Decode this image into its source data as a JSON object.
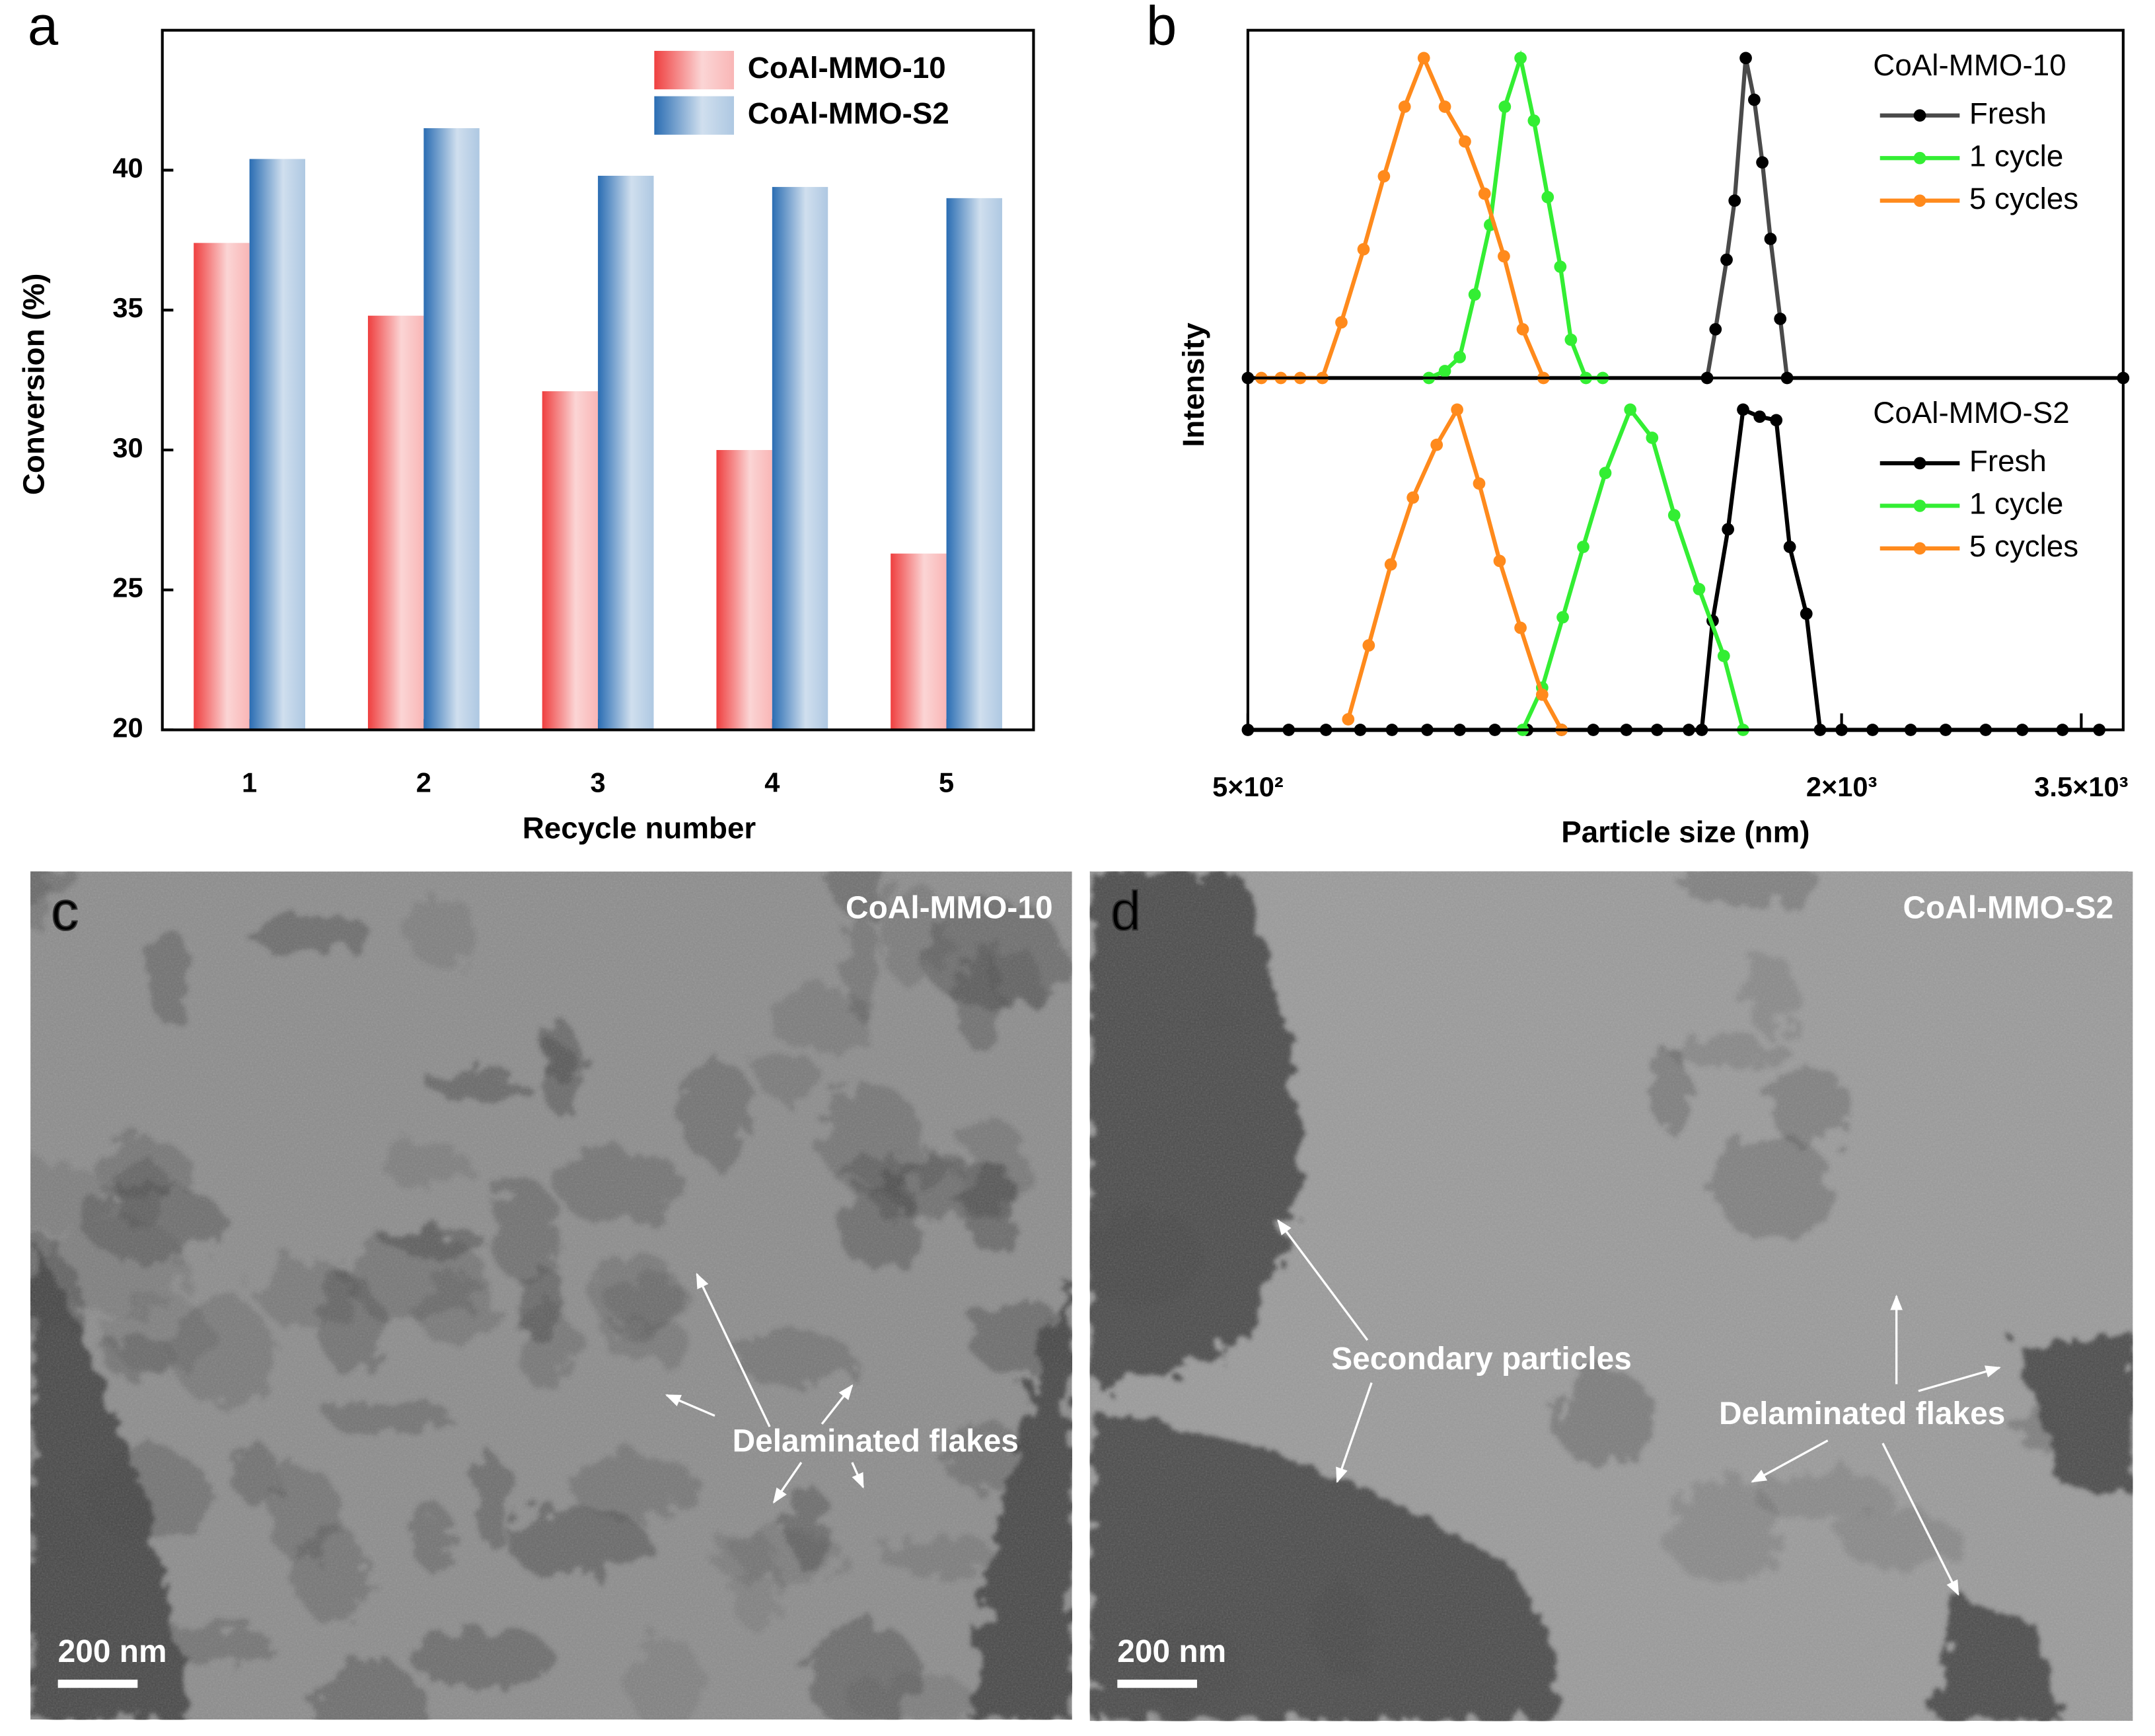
{
  "chart_data": [
    {
      "type": "bar",
      "panel_label": "a",
      "xlabel": "Recycle number",
      "ylabel": "Conversion (%)",
      "categories": [
        "1",
        "2",
        "3",
        "4",
        "5"
      ],
      "series": [
        {
          "name": "CoAl-MMO-10",
          "color": "#ef3f3f",
          "values": [
            37.4,
            34.8,
            32.1,
            30.0,
            26.3
          ]
        },
        {
          "name": "CoAl-MMO-S2",
          "color": "#2a6db3",
          "values": [
            40.4,
            41.5,
            39.8,
            39.4,
            39.0
          ]
        }
      ],
      "ylim": [
        20,
        45
      ],
      "yticks": [
        20,
        25,
        30,
        35,
        40
      ],
      "legend": "top-right"
    },
    {
      "type": "line",
      "panel_label": "b",
      "ylabel": "Intensity",
      "legend_title": "CoAl-MMO-10",
      "log_x": true,
      "xlim": [
        500,
        3860
      ],
      "ylim": [
        0,
        100
      ],
      "legend": "top-right",
      "series": [
        {
          "name": "Fresh",
          "color": "#4a4a4a",
          "marker_color": "#000000",
          "x": [
            500,
            1461,
            1490,
            1529,
            1558,
            1599,
            1631,
            1662,
            1694,
            1733,
            1761,
            3860
          ],
          "values": [
            0,
            0,
            14,
            34,
            51,
            92,
            80,
            62,
            40,
            17,
            0,
            0
          ]
        },
        {
          "name": "1 cycle",
          "color": "#33ee33",
          "marker_color": "#33ee33",
          "x": [
            763,
            792,
            820,
            849,
            880,
            911,
            945,
            975,
            1007,
            1037,
            1063,
            1101,
            1145
          ],
          "values": [
            0,
            2,
            6,
            24,
            44,
            78,
            92,
            74,
            52,
            32,
            11,
            0,
            0
          ]
        },
        {
          "name": "5 cycles",
          "color": "#ff8a1c",
          "marker_color": "#ff8a1c",
          "x": [
            516,
            540,
            565,
            595,
            622,
            655,
            687,
            721,
            754,
            792,
            830,
            869,
            909,
            950,
            997
          ],
          "values": [
            0,
            0,
            0,
            0,
            16,
            37,
            58,
            78,
            92,
            78,
            68,
            53,
            35,
            14,
            0
          ]
        }
      ]
    },
    {
      "type": "line",
      "legend_title": "CoAl-MMO-S2",
      "xlabel": "Particle size (nm)",
      "log_x": true,
      "xlim": [
        500,
        3860
      ],
      "ylim": [
        0,
        100
      ],
      "legend": "top-right",
      "xticks": [
        {
          "value": 500,
          "label": "5×10²"
        },
        {
          "value": 2000,
          "label": "2×10³"
        },
        {
          "value": 3500,
          "label": "3.5×10³"
        }
      ],
      "series": [
        {
          "name": "Fresh",
          "color": "#000000",
          "marker_color": "#000000",
          "x": [
            500,
            550,
            600,
            650,
            700,
            760,
            820,
            890,
            960,
            1040,
            1120,
            1210,
            1300,
            1400,
            1443,
            1480,
            1534,
            1589,
            1652,
            1717,
            1772,
            1842,
            1902,
            2000,
            2150,
            2350,
            2550,
            2800,
            3050,
            3350,
            3650
          ],
          "values": [
            0,
            0,
            0,
            0,
            0,
            0,
            0,
            0,
            0,
            0,
            0,
            0,
            0,
            0,
            0,
            31,
            57,
            91,
            89,
            88,
            52,
            33,
            0,
            0,
            0,
            0,
            0,
            0,
            0,
            0,
            0
          ]
        },
        {
          "name": "1 cycle",
          "color": "#33ee33",
          "marker_color": "#33ee33",
          "x": [
            950,
            994,
            1043,
            1094,
            1152,
            1221,
            1285,
            1353,
            1434,
            1519,
            1589
          ],
          "values": [
            0,
            12,
            32,
            52,
            73,
            91,
            83,
            61,
            40,
            21,
            0
          ]
        },
        {
          "name": "5 cycles",
          "color": "#ff8a1c",
          "marker_color": "#ff8a1c",
          "x": [
            632,
            663,
            698,
            735,
            777,
            815,
            858,
            900,
            945,
            994,
            1040
          ],
          "values": [
            3,
            24,
            47,
            66,
            81,
            91,
            70,
            48,
            29,
            10,
            0
          ]
        }
      ]
    }
  ],
  "images": [
    {
      "panel_label": "c",
      "title": "CoAl-MMO-10",
      "scale_bar": "200 nm",
      "annotations": [
        "Delaminated flakes"
      ]
    },
    {
      "panel_label": "d",
      "title": "CoAl-MMO-S2",
      "scale_bar": "200 nm",
      "annotations": [
        "Secondary particles",
        "Delaminated flakes"
      ]
    }
  ]
}
